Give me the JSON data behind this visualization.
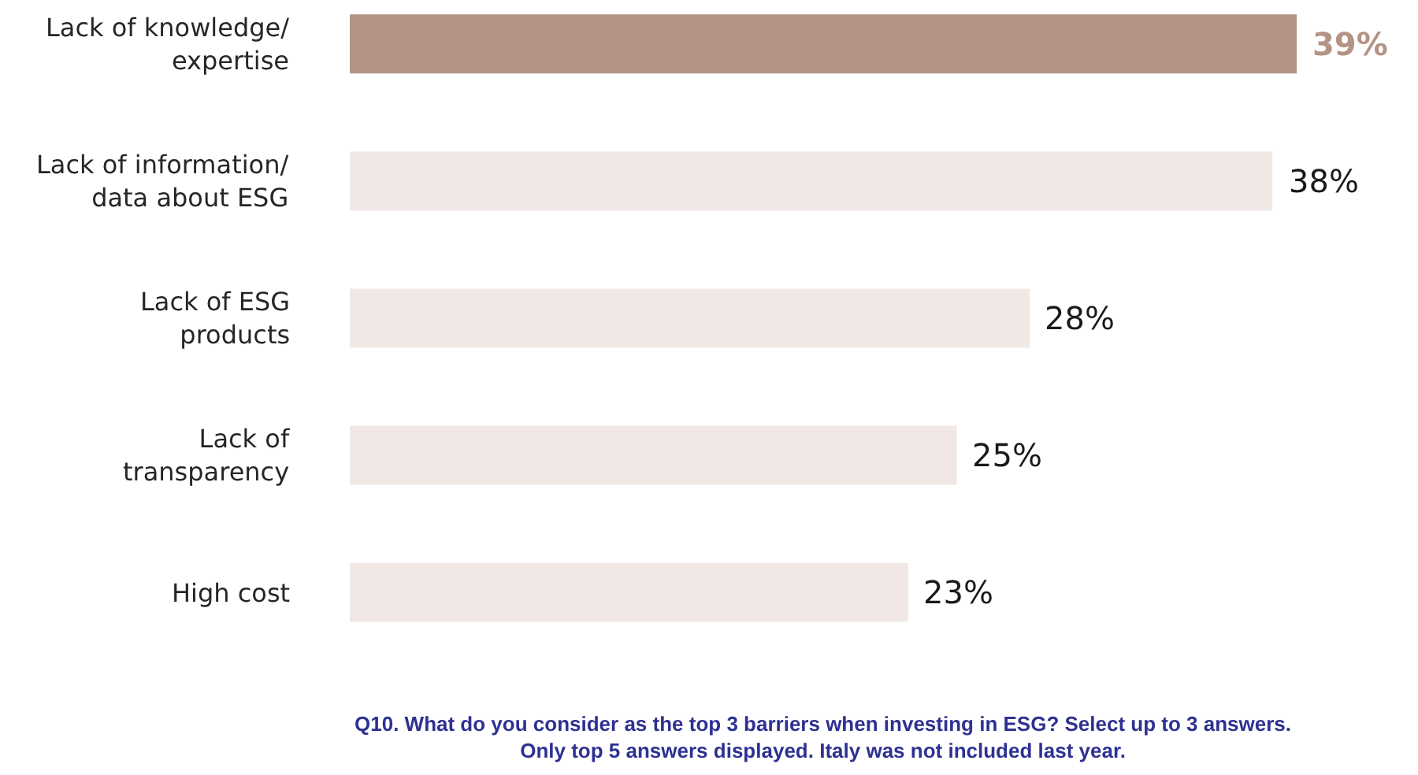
{
  "chart_data": {
    "type": "bar",
    "orientation": "horizontal",
    "categories": [
      "Lack of knowledge/\nexpertise",
      "Lack of information/\ndata about ESG",
      "Lack of ESG\nproducts",
      "Lack of\ntransparency",
      "High cost"
    ],
    "values": [
      39,
      38,
      28,
      25,
      23
    ],
    "colors": [
      "#b39384",
      "#f1e7e4",
      "#f1e7e4",
      "#f1e7e4",
      "#f1e7e4"
    ],
    "value_labels": [
      "39%",
      "38%",
      "28%",
      "25%",
      "23%"
    ],
    "annotations": [
      "Q10. What do you consider as the top 3 barriers when investing in ESG? Select up to 3 answers.\nOnly top 5 answers displayed. Italy was not included last year."
    ]
  }
}
